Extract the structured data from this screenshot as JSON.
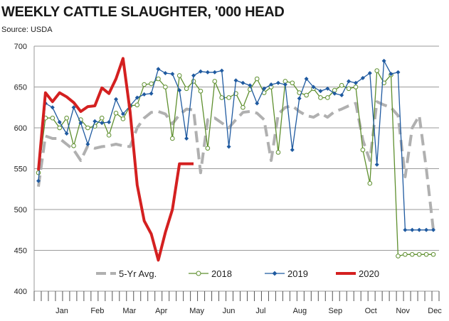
{
  "header": {
    "title": "WEEKLY CATTLE SLAUGHTER, '000 HEAD",
    "source": "Source: USDA"
  },
  "chart_data": {
    "type": "line",
    "title": "WEEKLY CATTLE SLAUGHTER, '000 HEAD",
    "xlabel": "",
    "ylabel": "",
    "ylim": [
      400,
      700
    ],
    "y_ticks": [
      400,
      450,
      500,
      550,
      600,
      650,
      700
    ],
    "x_week_range": [
      1,
      53
    ],
    "month_labels": [
      "Jan",
      "Feb",
      "Mar",
      "Apr",
      "May",
      "Jun",
      "Jul",
      "Aug",
      "Sep",
      "Oct",
      "Nov",
      "Dec"
    ],
    "month_label_weeks": [
      3,
      8,
      12.5,
      17,
      22,
      26.5,
      31,
      36.5,
      41.5,
      46.5,
      51,
      55.5
    ],
    "legend_position": "bottom-inside",
    "grid": true,
    "series": [
      {
        "name": "5-Yr Avg.",
        "color": "#b0b0b0",
        "dashed": true,
        "x": [
          1,
          2,
          3,
          4,
          5,
          6,
          7,
          8,
          9,
          10,
          11,
          12,
          13,
          14,
          15,
          16,
          17,
          18,
          19,
          20,
          21,
          22,
          23,
          24,
          25,
          26,
          27,
          28,
          29,
          30,
          31,
          32,
          33,
          34,
          35,
          36,
          37,
          38,
          39,
          40,
          41,
          42,
          43,
          44,
          45,
          46,
          47,
          48,
          49,
          50,
          51,
          52,
          53,
          54,
          55,
          56,
          57
        ],
        "values": [
          528,
          590,
          587,
          587,
          580,
          573,
          560,
          578,
          575,
          577,
          578,
          580,
          578,
          577,
          600,
          612,
          619,
          620,
          617,
          605,
          616,
          623,
          622,
          545,
          610,
          612,
          606,
          600,
          610,
          619,
          620,
          618,
          610,
          560,
          617,
          625,
          627,
          620,
          615,
          613,
          618,
          613,
          620,
          623,
          627,
          630,
          585,
          560,
          632,
          628,
          625,
          615,
          540,
          600,
          615,
          550,
          475
        ]
      },
      {
        "name": "2018",
        "color": "#5e8f2e",
        "dashed": false,
        "x": [
          1,
          2,
          3,
          4,
          5,
          6,
          7,
          8,
          9,
          10,
          11,
          12,
          13,
          14,
          15,
          16,
          17,
          18,
          19,
          20,
          21,
          22,
          23,
          24,
          25,
          26,
          27,
          28,
          29,
          30,
          31,
          32,
          33,
          34,
          35,
          36,
          37,
          38,
          39,
          40,
          41,
          42,
          43,
          44,
          45,
          46,
          47,
          48,
          49,
          50,
          51,
          52,
          53,
          54,
          55,
          56,
          57
        ],
        "values": [
          545,
          612,
          612,
          600,
          612,
          578,
          610,
          600,
          602,
          612,
          591,
          618,
          611,
          627,
          628,
          653,
          654,
          660,
          650,
          587,
          664,
          648,
          657,
          645,
          575,
          657,
          637,
          637,
          642,
          625,
          647,
          660,
          643,
          650,
          570,
          657,
          655,
          643,
          640,
          648,
          637,
          637,
          646,
          652,
          648,
          650,
          573,
          532,
          670,
          655,
          665,
          443,
          445,
          445,
          445,
          445,
          445
        ]
      },
      {
        "name": "2019",
        "color": "#1f5aa0",
        "dashed": false,
        "x": [
          1,
          2,
          3,
          4,
          5,
          6,
          7,
          8,
          9,
          10,
          11,
          12,
          13,
          14,
          15,
          16,
          17,
          18,
          19,
          20,
          21,
          22,
          23,
          24,
          25,
          26,
          27,
          28,
          29,
          30,
          31,
          32,
          33,
          34,
          35,
          36,
          37,
          38,
          39,
          40,
          41,
          42,
          43,
          44,
          45,
          46,
          47,
          48,
          49,
          50,
          51,
          52,
          53,
          54,
          55,
          56,
          57
        ],
        "values": [
          535,
          630,
          625,
          607,
          593,
          625,
          606,
          580,
          608,
          606,
          607,
          635,
          617,
          627,
          637,
          641,
          642,
          672,
          667,
          666,
          646,
          587,
          664,
          669,
          668,
          668,
          670,
          577,
          658,
          655,
          652,
          630,
          648,
          653,
          655,
          653,
          573,
          636,
          660,
          650,
          645,
          648,
          642,
          640,
          657,
          655,
          661,
          667,
          555,
          682,
          666,
          668,
          475,
          475,
          475,
          475,
          475
        ]
      },
      {
        "name": "2020",
        "color": "#d42020",
        "dashed": false,
        "x": [
          1,
          2,
          3,
          4,
          5,
          6,
          7,
          8,
          9,
          10,
          11,
          12,
          13,
          14,
          15,
          16,
          17,
          18,
          19,
          20,
          21,
          22,
          23
        ],
        "values": [
          548,
          643,
          632,
          643,
          638,
          631,
          620,
          626,
          627,
          649,
          642,
          660,
          685,
          620,
          530,
          486,
          470,
          438,
          472,
          500,
          556,
          556,
          556
        ]
      }
    ]
  }
}
